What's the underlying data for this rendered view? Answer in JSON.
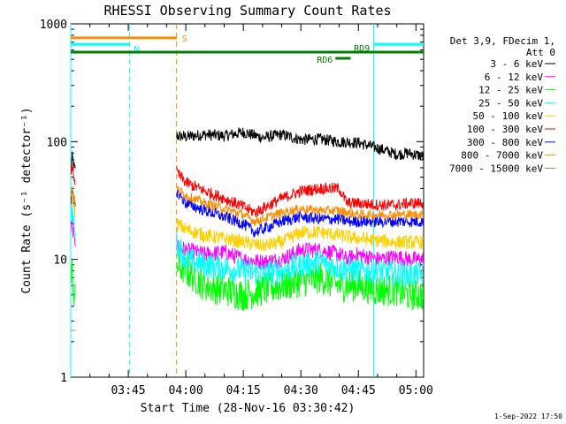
{
  "chart_data": {
    "type": "line",
    "title": "RHESSI Observing Summary Count Rates",
    "xlabel": "Start Time (28-Nov-16 03:30:42)",
    "ylabel": "Count Rate (s⁻¹ detector⁻¹)",
    "yscale": "log",
    "xlim_minutes": [
      0,
      92
    ],
    "ylim": [
      1,
      1000
    ],
    "x_ticks": [
      {
        "minute": 15,
        "label": "03:45"
      },
      {
        "minute": 30,
        "label": "04:00"
      },
      {
        "minute": 45,
        "label": "04:15"
      },
      {
        "minute": 60,
        "label": "04:30"
      },
      {
        "minute": 75,
        "label": "04:45"
      },
      {
        "minute": 90,
        "label": "05:00"
      }
    ],
    "y_ticks": [
      {
        "value": 1,
        "label": "1"
      },
      {
        "value": 10,
        "label": "10"
      },
      {
        "value": 100,
        "label": "100"
      },
      {
        "value": 1000,
        "label": "1000"
      }
    ],
    "legend_header": [
      "Det 3,9, FDecim 1,",
      "Att 0"
    ],
    "legend_position": "right",
    "series": [
      {
        "name": "3 - 6 keV",
        "color": "#000000",
        "values": [
          [
            0,
            60
          ],
          [
            0.4,
            75
          ],
          [
            0.8,
            62
          ],
          [
            1.3,
            55
          ],
          [
            27.6,
            112
          ],
          [
            30,
            110
          ],
          [
            35,
            115
          ],
          [
            40,
            112
          ],
          [
            45,
            120
          ],
          [
            50,
            108
          ],
          [
            55,
            115
          ],
          [
            60,
            104
          ],
          [
            65,
            105
          ],
          [
            70,
            100
          ],
          [
            75,
            98
          ],
          [
            80,
            88
          ],
          [
            85,
            78
          ],
          [
            88,
            80
          ],
          [
            92,
            75
          ]
        ]
      },
      {
        "name": "6 - 12 keV",
        "color": "#ff00ff",
        "values": [
          [
            0,
            18
          ],
          [
            0.4,
            20
          ],
          [
            0.8,
            16
          ],
          [
            1.3,
            14
          ],
          [
            27.6,
            13
          ],
          [
            30,
            12
          ],
          [
            35,
            11
          ],
          [
            40,
            11.5
          ],
          [
            45,
            10
          ],
          [
            50,
            9.5
          ],
          [
            55,
            10
          ],
          [
            60,
            12
          ],
          [
            65,
            12
          ],
          [
            70,
            11
          ],
          [
            72,
            10
          ],
          [
            75,
            11
          ],
          [
            80,
            10
          ],
          [
            85,
            10.5
          ],
          [
            88,
            10
          ],
          [
            92,
            10
          ]
        ]
      },
      {
        "name": "12 - 25 keV",
        "color": "#00ff00",
        "values": [
          [
            0,
            6
          ],
          [
            0.4,
            8
          ],
          [
            0.8,
            5
          ],
          [
            1.3,
            4.5
          ],
          [
            27.6,
            9
          ],
          [
            30,
            8
          ],
          [
            35,
            6
          ],
          [
            40,
            5.5
          ],
          [
            45,
            5
          ],
          [
            50,
            5.5
          ],
          [
            55,
            6
          ],
          [
            60,
            6.5
          ],
          [
            65,
            7
          ],
          [
            70,
            6
          ],
          [
            75,
            6
          ],
          [
            80,
            5.5
          ],
          [
            85,
            5.5
          ],
          [
            88,
            5
          ],
          [
            92,
            5
          ]
        ]
      },
      {
        "name": "25 - 50 keV",
        "color": "#00ffff",
        "values": [
          [
            0,
            22
          ],
          [
            0.4,
            25
          ],
          [
            0.8,
            20
          ],
          [
            1.3,
            18
          ],
          [
            27.6,
            14
          ],
          [
            30,
            10
          ],
          [
            35,
            9
          ],
          [
            40,
            8.5
          ],
          [
            45,
            8
          ],
          [
            50,
            7.5
          ],
          [
            55,
            8
          ],
          [
            60,
            9
          ],
          [
            65,
            9.5
          ],
          [
            70,
            8.5
          ],
          [
            75,
            8
          ],
          [
            80,
            8
          ],
          [
            85,
            7.5
          ],
          [
            88,
            7.5
          ],
          [
            92,
            7.5
          ]
        ]
      },
      {
        "name": "50 - 100 keV",
        "color": "#ffd000",
        "values": [
          [
            0,
            30
          ],
          [
            0.4,
            35
          ],
          [
            0.8,
            28
          ],
          [
            1.3,
            25
          ],
          [
            27.6,
            20
          ],
          [
            30,
            18
          ],
          [
            35,
            16
          ],
          [
            40,
            15
          ],
          [
            45,
            14
          ],
          [
            50,
            13
          ],
          [
            55,
            14
          ],
          [
            60,
            17
          ],
          [
            65,
            17
          ],
          [
            70,
            16
          ],
          [
            75,
            15
          ],
          [
            80,
            14.5
          ],
          [
            85,
            14
          ],
          [
            88,
            14
          ],
          [
            92,
            14
          ]
        ]
      },
      {
        "name": "100 - 300 keV",
        "color": "#ff0000",
        "values": [
          [
            0,
            55
          ],
          [
            0.4,
            62
          ],
          [
            0.8,
            50
          ],
          [
            1.3,
            45
          ],
          [
            27.6,
            55
          ],
          [
            30,
            45
          ],
          [
            35,
            38
          ],
          [
            40,
            33
          ],
          [
            45,
            28
          ],
          [
            48,
            25
          ],
          [
            50,
            27
          ],
          [
            55,
            33
          ],
          [
            60,
            38
          ],
          [
            65,
            40
          ],
          [
            70,
            40
          ],
          [
            72,
            30
          ],
          [
            75,
            30
          ],
          [
            80,
            29
          ],
          [
            85,
            29
          ],
          [
            88,
            30
          ],
          [
            92,
            30
          ]
        ]
      },
      {
        "name": "300 - 800 keV",
        "color": "#0000ff",
        "values": [
          [
            0,
            32
          ],
          [
            0.4,
            38
          ],
          [
            0.8,
            30
          ],
          [
            1.3,
            28
          ],
          [
            27.6,
            38
          ],
          [
            30,
            30
          ],
          [
            35,
            26
          ],
          [
            40,
            23
          ],
          [
            45,
            20
          ],
          [
            48,
            17
          ],
          [
            50,
            18
          ],
          [
            55,
            21
          ],
          [
            60,
            23
          ],
          [
            65,
            22
          ],
          [
            70,
            22
          ],
          [
            72,
            21
          ],
          [
            75,
            21
          ],
          [
            80,
            21
          ],
          [
            85,
            21
          ],
          [
            88,
            21
          ],
          [
            92,
            21
          ]
        ]
      },
      {
        "name": "800 - 7000 keV",
        "color": "#ff8c00",
        "values": [
          [
            0,
            35
          ],
          [
            0.4,
            42
          ],
          [
            0.8,
            33
          ],
          [
            1.3,
            30
          ],
          [
            27.6,
            40
          ],
          [
            30,
            35
          ],
          [
            35,
            30
          ],
          [
            40,
            27
          ],
          [
            45,
            24
          ],
          [
            48,
            21
          ],
          [
            50,
            22
          ],
          [
            55,
            25
          ],
          [
            60,
            27
          ],
          [
            65,
            26
          ],
          [
            70,
            26
          ],
          [
            72,
            25
          ],
          [
            75,
            24
          ],
          [
            80,
            24
          ],
          [
            85,
            24
          ],
          [
            88,
            24
          ],
          [
            92,
            24
          ]
        ]
      },
      {
        "name": "7000 - 15000 keV",
        "color": "#c08040",
        "values": [
          [
            0,
            2.5
          ],
          [
            1.3,
            2.5
          ]
        ]
      }
    ],
    "annotations": [
      {
        "text": "S",
        "color": "#ff8c00",
        "x_start": 0,
        "x_end": 27.6,
        "level": 760
      },
      {
        "text": "N",
        "color": "#00ffff",
        "x_start": 0,
        "x_end": 15.3,
        "level": 670,
        "x_start2": 79,
        "x_end2": 92
      },
      {
        "text": "RD6",
        "color": "#008000",
        "x_start": 69,
        "x_end": 73,
        "level": 510
      },
      {
        "text": "RD9",
        "color": "#008000",
        "x_start": 0,
        "x_end": 92,
        "level": 575
      }
    ],
    "vertical_lines": [
      {
        "minute": 0,
        "color": "#00ffff",
        "style": "solid"
      },
      {
        "minute": 15.3,
        "color": "#00ffff",
        "style": "dashed"
      },
      {
        "minute": 27.6,
        "color": "#ff8c00",
        "style": "dashed"
      },
      {
        "minute": 79,
        "color": "#00ffff",
        "style": "solid"
      },
      {
        "minute": 93.3,
        "color": "#00ffff",
        "style": "dashed"
      }
    ]
  },
  "footer": {
    "timestamp": "1-Sep-2022 17:50"
  }
}
